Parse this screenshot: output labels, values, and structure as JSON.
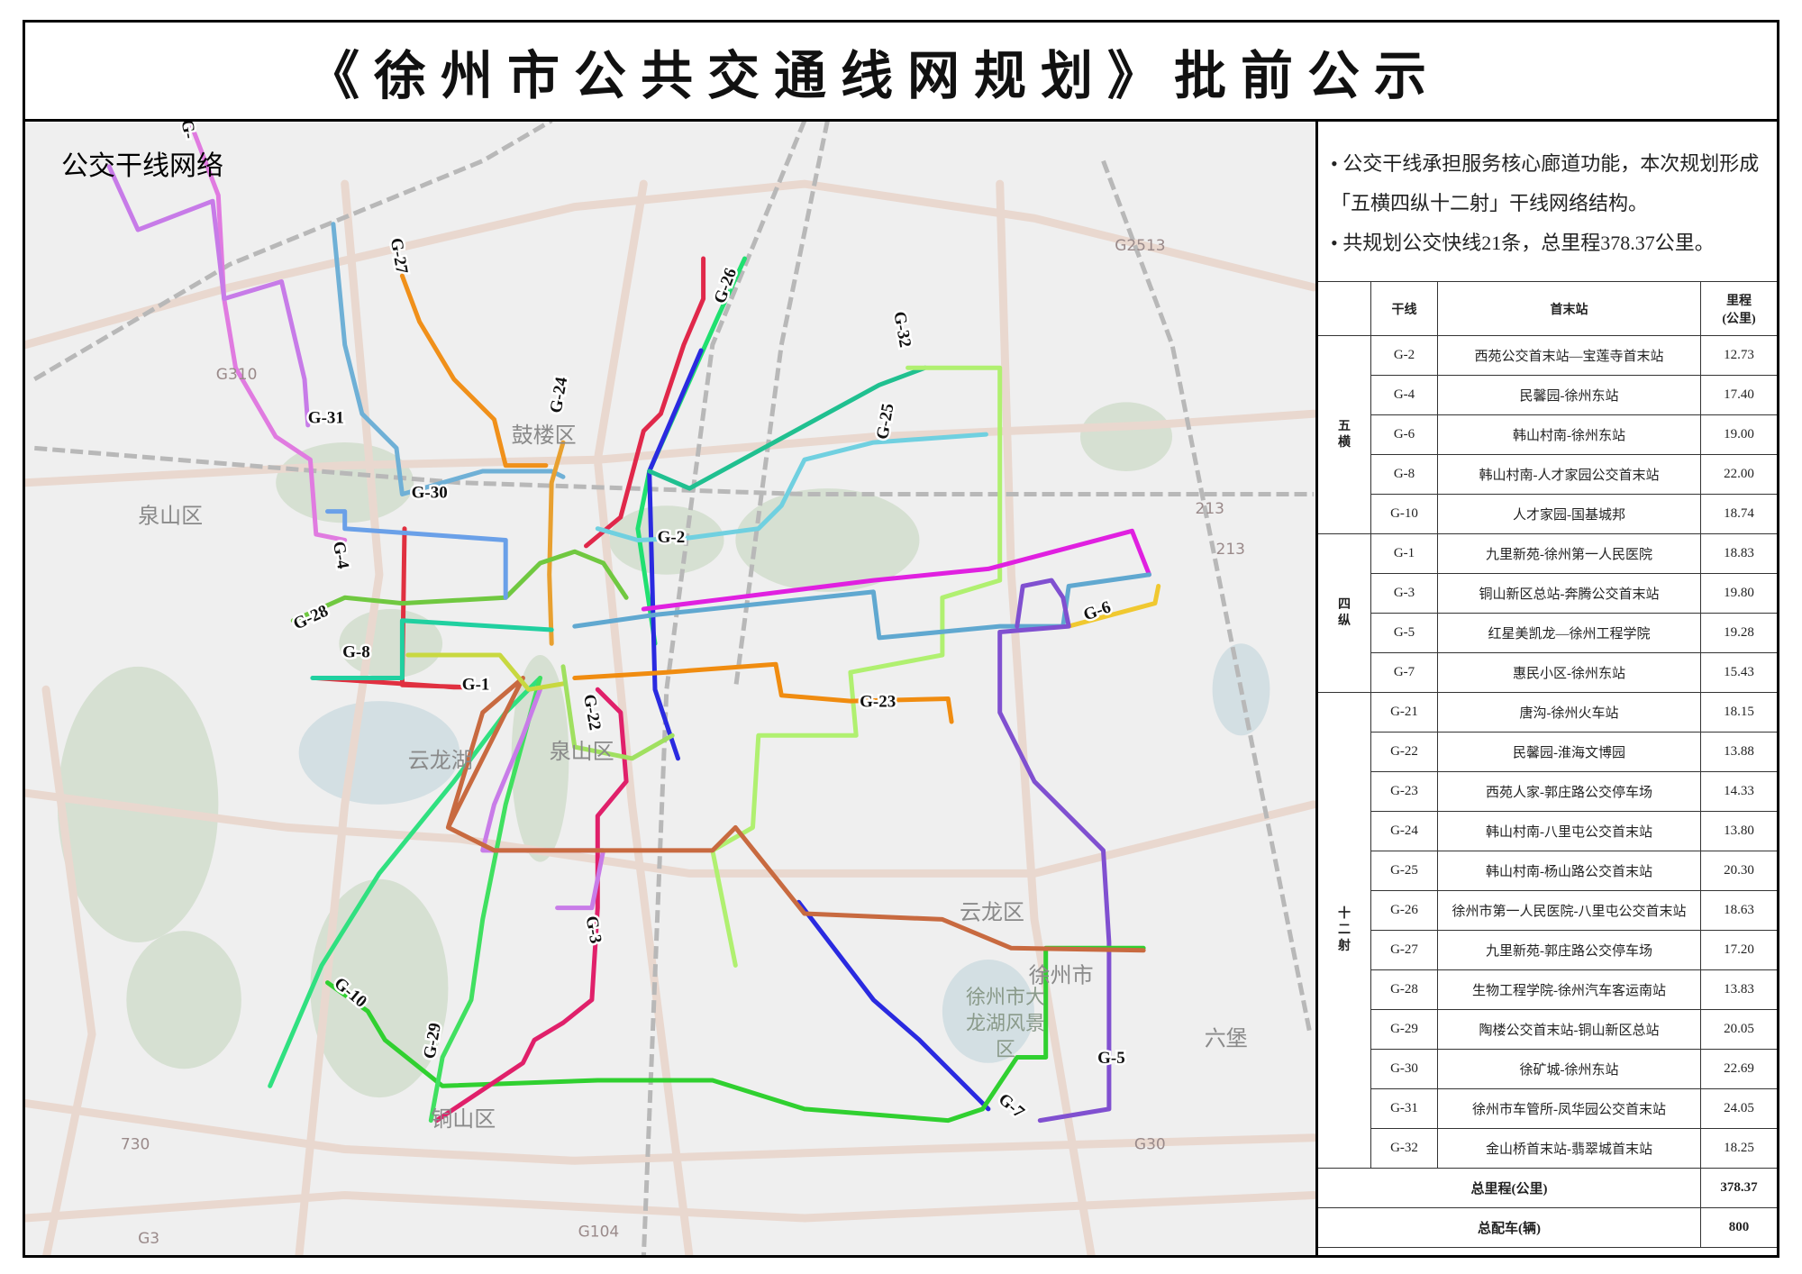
{
  "title": "《徐州市公共交通线网规划》批前公示",
  "map": {
    "title": "公交干线网络",
    "places": [
      "鼓楼区",
      "泉山区",
      "泉山区",
      "云龙湖",
      "云龙区",
      "徐州市",
      "徐州市大龙湖风景区",
      "铜山区",
      "六堡"
    ],
    "road_shields": [
      "G310",
      "G2513",
      "G30",
      "G104",
      "G3",
      "213",
      "213",
      "730"
    ],
    "routes": [
      {
        "id": "G-31",
        "color": "#e07be0"
      },
      {
        "id": "G-31b",
        "color": "#c77be8"
      },
      {
        "id": "G-30",
        "color": "#6fb0d6"
      },
      {
        "id": "G-27",
        "color": "#f0901a"
      },
      {
        "id": "G-24",
        "color": "#e8a030"
      },
      {
        "id": "G-26",
        "color": "#e0284a"
      },
      {
        "id": "G-26b",
        "color": "#20e070"
      },
      {
        "id": "G-21",
        "color": "#2a2ae0"
      },
      {
        "id": "G-25",
        "color": "#20c090"
      },
      {
        "id": "G-32",
        "color": "#b0f070"
      },
      {
        "id": "G-2",
        "color": "#70d0e0"
      },
      {
        "id": "G-6",
        "color": "#e020e0"
      },
      {
        "id": "G-6b",
        "color": "#60a8d0"
      },
      {
        "id": "G-6c",
        "color": "#f0c830"
      },
      {
        "id": "G-5",
        "color": "#8050d0"
      },
      {
        "id": "G-23",
        "color": "#f08c10"
      },
      {
        "id": "G-7",
        "color": "#2a2ae0"
      },
      {
        "id": "G-10",
        "color": "#30d030"
      },
      {
        "id": "G-10b",
        "color": "#30e080"
      },
      {
        "id": "G-29",
        "color": "#40e060"
      },
      {
        "id": "G-3",
        "color": "#e0206a"
      },
      {
        "id": "G-3b",
        "color": "#c87ce8"
      },
      {
        "id": "G-21b",
        "color": "#c86a40"
      },
      {
        "id": "G-1",
        "color": "#e03040"
      },
      {
        "id": "G-1b",
        "color": "#20d0a0"
      },
      {
        "id": "G-8",
        "color": "#c8d840"
      },
      {
        "id": "G-28",
        "color": "#70c840"
      },
      {
        "id": "G-4",
        "color": "#6aa0e8"
      },
      {
        "id": "G-22",
        "color": "#a0e060"
      }
    ],
    "labels": [
      "G-31",
      "G-30",
      "G-27",
      "G-24",
      "G-26",
      "G-32",
      "G-25",
      "G-2",
      "G-4",
      "G-28",
      "G-8",
      "G-1",
      "G-22",
      "G-23",
      "G-6",
      "G-10",
      "G-29",
      "G-3",
      "G-5",
      "G-7",
      "G-"
    ]
  },
  "panel": {
    "bullets": [
      "• 公交干线承担服务核心廊道功能，本次规划形成「五横四纵十二射」干线网络结构。",
      "• 共规划公交快线21条，总里程378.37公里。"
    ],
    "table": {
      "headers": {
        "line": "干线",
        "stations": "首末站",
        "distance_l1": "里程",
        "distance_l2": "(公里)"
      },
      "groups": [
        {
          "name": "五横",
          "rows": [
            {
              "line": "G-2",
              "stations": "西苑公交首末站—宝莲寺首末站",
              "km": "12.73"
            },
            {
              "line": "G-4",
              "stations": "民馨园-徐州东站",
              "km": "17.40"
            },
            {
              "line": "G-6",
              "stations": "韩山村南-徐州东站",
              "km": "19.00"
            },
            {
              "line": "G-8",
              "stations": "韩山村南-人才家园公交首末站",
              "km": "22.00"
            },
            {
              "line": "G-10",
              "stations": "人才家园-国基城邦",
              "km": "18.74"
            }
          ]
        },
        {
          "name": "四纵",
          "rows": [
            {
              "line": "G-1",
              "stations": "九里新苑-徐州第一人民医院",
              "km": "18.83"
            },
            {
              "line": "G-3",
              "stations": "铜山新区总站-奔腾公交首末站",
              "km": "19.80"
            },
            {
              "line": "G-5",
              "stations": "红星美凯龙—徐州工程学院",
              "km": "19.28"
            },
            {
              "line": "G-7",
              "stations": "惠民小区-徐州东站",
              "km": "15.43"
            }
          ]
        },
        {
          "name": "十二射",
          "rows": [
            {
              "line": "G-21",
              "stations": "唐沟-徐州火车站",
              "km": "18.15"
            },
            {
              "line": "G-22",
              "stations": "民馨园-淮海文博园",
              "km": "13.88"
            },
            {
              "line": "G-23",
              "stations": "西苑人家-郭庄路公交停车场",
              "km": "14.33"
            },
            {
              "line": "G-24",
              "stations": "韩山村南-八里屯公交首末站",
              "km": "13.80"
            },
            {
              "line": "G-25",
              "stations": "韩山村南-杨山路公交首末站",
              "km": "20.30"
            },
            {
              "line": "G-26",
              "stations": "徐州市第一人民医院-八里屯公交首末站",
              "km": "18.63"
            },
            {
              "line": "G-27",
              "stations": "九里新苑-郭庄路公交停车场",
              "km": "17.20"
            },
            {
              "line": "G-28",
              "stations": "生物工程学院-徐州汽车客运南站",
              "km": "13.83"
            },
            {
              "line": "G-29",
              "stations": "陶楼公交首末站-铜山新区总站",
              "km": "20.05"
            },
            {
              "line": "G-30",
              "stations": "徐矿城-徐州东站",
              "km": "22.69"
            },
            {
              "line": "G-31",
              "stations": "徐州市车管所-凤华园公交首末站",
              "km": "24.05"
            },
            {
              "line": "G-32",
              "stations": "金山桥首末站-翡翠城首末站",
              "km": "18.25"
            }
          ]
        }
      ],
      "total_km_label": "总里程(公里)",
      "total_km": "378.37",
      "total_vehicles_label": "总配车(辆)",
      "total_vehicles": "800"
    }
  }
}
